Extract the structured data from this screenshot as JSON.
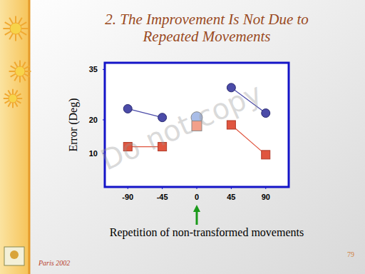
{
  "chart_data": {
    "type": "line",
    "title": "2. The Improvement Is Not Due to Repeated Movements",
    "y_label": "Error (Deg)",
    "x_label": "Repetition of non-transformed movements",
    "watermark": "Do not copy",
    "footer": "Paris 2002",
    "page_number": "79",
    "x": [
      -90,
      -45,
      0,
      45,
      90
    ],
    "xlim": [
      -120,
      120
    ],
    "xticks": [
      -90,
      -45,
      0,
      45,
      90
    ],
    "ylim": [
      0,
      37
    ],
    "yticks": [
      10,
      20,
      35
    ],
    "grid": false,
    "series": [
      {
        "type": "line",
        "color": "#4b4ba8",
        "marker": "circle",
        "values": [
          23.3,
          20.7,
          null,
          29.6,
          22.0
        ]
      },
      {
        "type": "line",
        "color": "#e0553f",
        "marker": "square",
        "values": [
          12.0,
          12.0,
          null,
          18.5,
          9.6
        ]
      },
      {
        "type": "scatter",
        "color": "#a9bde8",
        "marker": "circle",
        "values": [
          null,
          null,
          20.7,
          null,
          null
        ]
      },
      {
        "type": "scatter",
        "color": "#f2a08a",
        "marker": "square",
        "values": [
          null,
          null,
          18.2,
          null,
          null
        ]
      }
    ]
  }
}
